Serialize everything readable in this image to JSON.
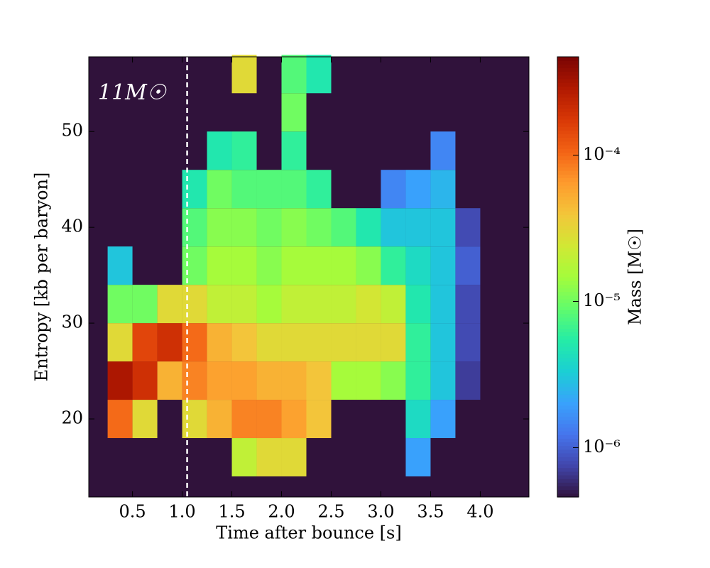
{
  "chart_data": {
    "type": "heatmap",
    "x_label": "Time after bounce [s]",
    "y_label": "Entropy [kb per baryon]",
    "colorbar_label": "Mass [M☉]",
    "annotation": "11M☉",
    "vline": 1.05,
    "xlim": [
      0.06,
      4.49
    ],
    "ylim": [
      11.85,
      57.8
    ],
    "xticks": [
      0.5,
      {
        "value": 1,
        "label": "1.0"
      },
      1.5,
      {
        "value": 2,
        "label": "2.0"
      },
      2.5,
      {
        "value": 3,
        "label": "3.0"
      },
      3.5,
      {
        "value": 4,
        "label": "4.0"
      }
    ],
    "yticks": [
      20,
      30,
      40,
      50
    ],
    "clim": [
      4.6e-07,
      0.00047
    ],
    "log_color": true,
    "cticks": [
      {
        "value": 1e-06,
        "label": "10⁻⁶"
      },
      {
        "value": 1e-05,
        "label": "10⁻⁵"
      },
      {
        "value": 0.0001,
        "label": "10⁻⁴"
      }
    ],
    "colormap": [
      "#30123b",
      "#4145ab",
      "#4675ed",
      "#39a2fc",
      "#1bcfd4",
      "#24eca6",
      "#61fc6c",
      "#a4fc3b",
      "#d1e834",
      "#f3c63a",
      "#fe9b2d",
      "#f36315",
      "#d93806",
      "#b11901",
      "#7a0403"
    ],
    "x_edges": [
      0.25,
      0.5,
      0.75,
      1.0,
      1.25,
      1.5,
      1.75,
      2.0,
      2.25,
      2.5,
      2.75,
      3.0,
      3.25,
      3.5,
      3.75,
      4.0
    ],
    "y_edges": [
      14,
      18,
      22,
      26,
      30,
      34,
      38,
      42,
      46,
      50,
      54,
      58
    ],
    "values": [
      [
        null,
        null,
        null,
        null,
        null,
        2e-05,
        3e-05,
        3e-05,
        null,
        null,
        null,
        null,
        2e-06,
        null,
        null
      ],
      [
        0.0001,
        3e-05,
        null,
        3e-05,
        5e-05,
        8e-05,
        8e-05,
        6e-05,
        4e-05,
        null,
        null,
        null,
        4e-06,
        2e-06,
        null
      ],
      [
        0.0003,
        0.0002,
        5e-05,
        8e-05,
        6e-05,
        6e-05,
        5e-05,
        5e-05,
        4e-05,
        1.5e-05,
        1.5e-05,
        1.2e-05,
        6e-06,
        3e-06,
        7e-07
      ],
      [
        3e-05,
        0.00015,
        0.0002,
        0.0001,
        5e-05,
        4e-05,
        3e-05,
        3e-05,
        3e-05,
        3e-05,
        3e-05,
        3e-05,
        6e-06,
        3e-06,
        8e-07
      ],
      [
        1e-05,
        1e-05,
        3e-05,
        3e-05,
        2e-05,
        2e-05,
        1.5e-05,
        2e-05,
        2e-05,
        2e-05,
        2.5e-05,
        2e-05,
        5e-06,
        3e-06,
        8e-07
      ],
      [
        3e-06,
        null,
        null,
        1e-05,
        1.5e-05,
        1.5e-05,
        1.2e-05,
        1.5e-05,
        1.5e-05,
        1.5e-05,
        1.2e-05,
        6e-06,
        4e-06,
        3e-06,
        1e-06
      ],
      [
        null,
        null,
        null,
        8e-06,
        1.2e-05,
        1.2e-05,
        1e-05,
        1.2e-05,
        1e-05,
        8e-06,
        5e-06,
        3e-06,
        3e-06,
        3e-06,
        8e-07
      ],
      [
        null,
        null,
        null,
        5e-06,
        1e-05,
        8e-06,
        8e-06,
        8e-06,
        6e-06,
        null,
        null,
        1.5e-06,
        2e-06,
        2.5e-06,
        null
      ],
      [
        null,
        null,
        null,
        null,
        5e-06,
        6e-06,
        null,
        6e-06,
        null,
        null,
        null,
        null,
        null,
        1.5e-06,
        null
      ],
      [
        null,
        null,
        null,
        null,
        null,
        null,
        null,
        1e-05,
        null,
        null,
        null,
        null,
        null,
        null,
        null
      ],
      [
        null,
        null,
        null,
        null,
        null,
        3e-05,
        null,
        8e-06,
        5e-06,
        null,
        null,
        null,
        null,
        null,
        null
      ]
    ]
  }
}
